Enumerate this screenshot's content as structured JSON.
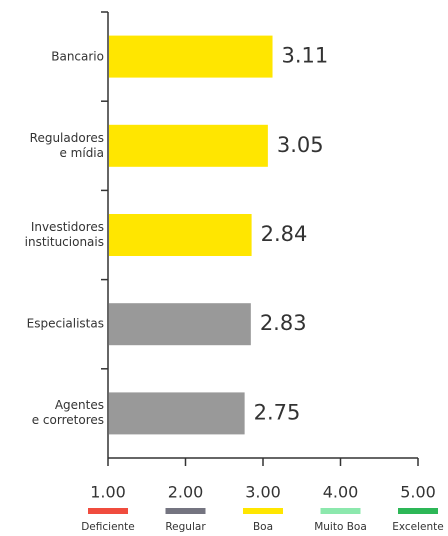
{
  "chart_data": {
    "type": "bar",
    "orientation": "horizontal",
    "categories": [
      "Bancario",
      "Reguladores\ne mídia",
      "Investidores\ninstitucionais",
      "Especialistas",
      "Agentes\ne corretores"
    ],
    "values": [
      3.11,
      3.05,
      2.84,
      2.83,
      2.75
    ],
    "colors": [
      "#ffe600",
      "#ffe600",
      "#ffe600",
      "#999999",
      "#999999"
    ],
    "xlim": [
      1,
      5
    ],
    "xticks": [
      {
        "value": 1,
        "label": "1.00"
      },
      {
        "value": 2,
        "label": "2.00"
      },
      {
        "value": 3,
        "label": "3.00"
      },
      {
        "value": 4,
        "label": "4.00"
      },
      {
        "value": 5,
        "label": "5.00"
      }
    ],
    "scale_labels": [
      "Deficiente",
      "Regular",
      "Boa",
      "Muito Boa",
      "Excelente"
    ],
    "scale_colors": [
      "#f04c3e",
      "#747480",
      "#ffe600",
      "#8ce8ad",
      "#2db757"
    ]
  }
}
